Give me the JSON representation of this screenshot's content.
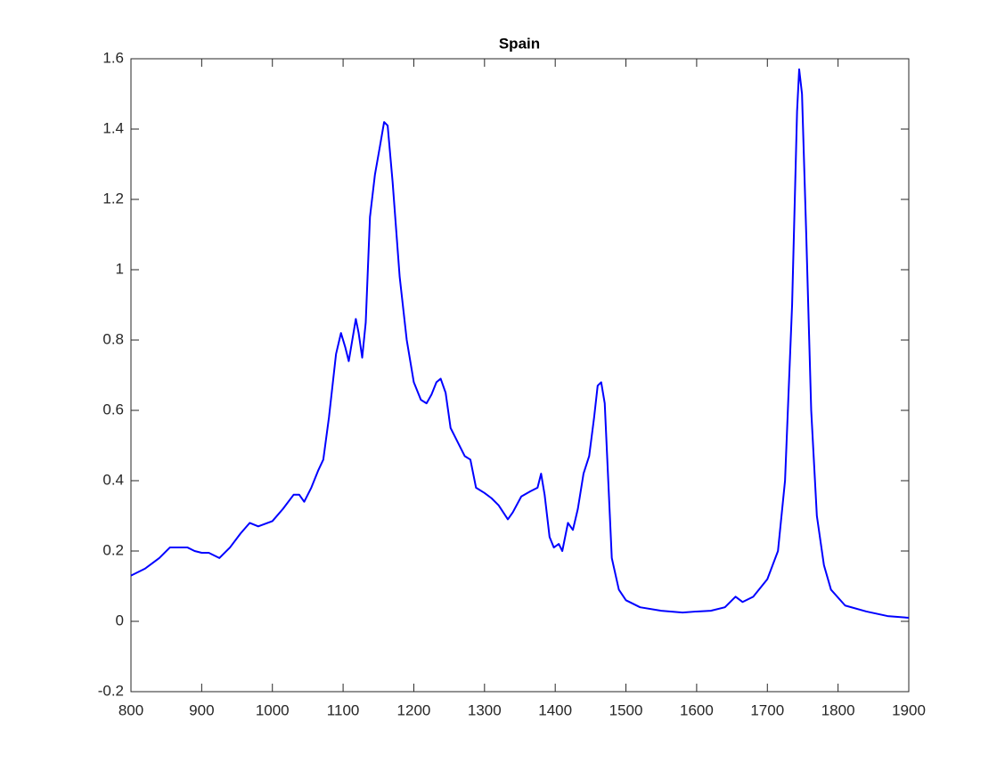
{
  "chart_data": {
    "type": "line",
    "title": "Spain",
    "color": "#0000ff",
    "x": [
      800,
      820,
      840,
      855,
      870,
      880,
      890,
      900,
      910,
      925,
      940,
      955,
      968,
      980,
      1000,
      1015,
      1030,
      1038,
      1045,
      1055,
      1065,
      1072,
      1080,
      1090,
      1097,
      1103,
      1108,
      1113,
      1118,
      1122,
      1127,
      1132,
      1138,
      1145,
      1152,
      1158,
      1163,
      1170,
      1180,
      1190,
      1200,
      1210,
      1218,
      1225,
      1232,
      1238,
      1245,
      1252,
      1262,
      1272,
      1280,
      1288,
      1300,
      1310,
      1320,
      1333,
      1340,
      1352,
      1365,
      1375,
      1380,
      1385,
      1392,
      1398,
      1405,
      1410,
      1418,
      1425,
      1432,
      1440,
      1448,
      1455,
      1460,
      1465,
      1470,
      1475,
      1480,
      1490,
      1500,
      1520,
      1550,
      1580,
      1600,
      1620,
      1640,
      1655,
      1665,
      1680,
      1700,
      1715,
      1725,
      1735,
      1742,
      1745,
      1749,
      1755,
      1762,
      1770,
      1780,
      1790,
      1810,
      1840,
      1870,
      1900
    ],
    "values": [
      0.13,
      0.15,
      0.18,
      0.21,
      0.21,
      0.21,
      0.2,
      0.195,
      0.195,
      0.18,
      0.21,
      0.25,
      0.28,
      0.27,
      0.285,
      0.32,
      0.36,
      0.36,
      0.34,
      0.38,
      0.43,
      0.46,
      0.58,
      0.76,
      0.82,
      0.78,
      0.74,
      0.8,
      0.86,
      0.82,
      0.75,
      0.85,
      1.15,
      1.27,
      1.35,
      1.42,
      1.41,
      1.25,
      0.98,
      0.8,
      0.68,
      0.63,
      0.62,
      0.645,
      0.68,
      0.69,
      0.65,
      0.55,
      0.51,
      0.47,
      0.46,
      0.38,
      0.365,
      0.35,
      0.33,
      0.29,
      0.31,
      0.355,
      0.37,
      0.38,
      0.42,
      0.36,
      0.24,
      0.21,
      0.22,
      0.2,
      0.28,
      0.26,
      0.32,
      0.42,
      0.47,
      0.58,
      0.67,
      0.68,
      0.62,
      0.4,
      0.18,
      0.09,
      0.06,
      0.04,
      0.03,
      0.025,
      0.028,
      0.03,
      0.04,
      0.07,
      0.055,
      0.07,
      0.12,
      0.2,
      0.4,
      0.9,
      1.45,
      1.57,
      1.5,
      1.1,
      0.6,
      0.3,
      0.16,
      0.09,
      0.045,
      0.028,
      0.015,
      0.01
    ],
    "xlim": [
      800,
      1900
    ],
    "xticks": [
      800,
      900,
      1000,
      1100,
      1200,
      1300,
      1400,
      1500,
      1600,
      1700,
      1800,
      1900
    ],
    "ylim": [
      -0.2,
      1.6
    ],
    "yticks": [
      -0.2,
      0,
      0.2,
      0.4,
      0.6,
      0.8,
      1,
      1.2,
      1.4,
      1.6
    ]
  }
}
